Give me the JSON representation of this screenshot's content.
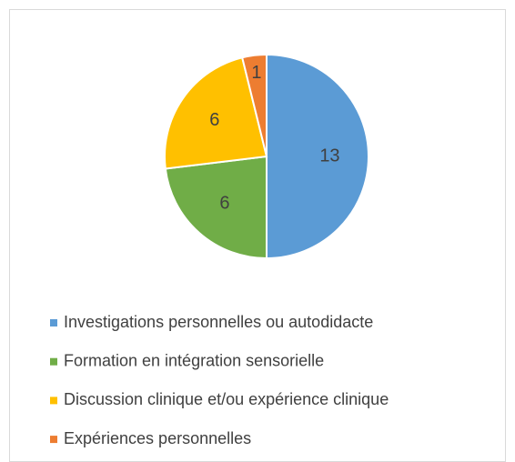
{
  "chart_data": {
    "type": "pie",
    "categories": [
      "Investigations personnelles ou autodidacte",
      "Formation en intégration sensorielle",
      "Discussion clinique et/ou expérience clinique",
      "Expériences personnelles"
    ],
    "values": [
      13,
      6,
      6,
      1
    ],
    "colors": [
      "#5b9bd5",
      "#70ad47",
      "#ffc000",
      "#ed7d31"
    ],
    "legend": "bottom"
  }
}
